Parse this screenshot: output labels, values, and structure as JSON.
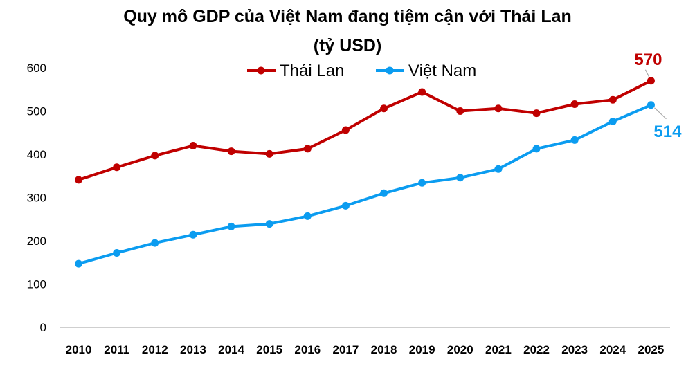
{
  "chart_data": {
    "type": "line",
    "title_line1": "Quy mô GDP của Việt Nam đang tiệm cận với Thái Lan",
    "title_line2": "(tỷ USD)",
    "xlabel": "",
    "ylabel": "",
    "ylim": [
      0,
      600
    ],
    "yticks": [
      "0",
      "100",
      "200",
      "300",
      "400",
      "500",
      "600"
    ],
    "categories": [
      "2010",
      "2011",
      "2012",
      "2013",
      "2014",
      "2015",
      "2016",
      "2017",
      "2018",
      "2019",
      "2020",
      "2021",
      "2022",
      "2023",
      "2024",
      "2025"
    ],
    "legend_position": "top-center",
    "grid": false,
    "series": [
      {
        "name": "Thái Lan",
        "color": "#C00000",
        "values": [
          341,
          370,
          397,
          420,
          407,
          401,
          413,
          456,
          506,
          544,
          500,
          506,
          495,
          516,
          526,
          570
        ],
        "end_label": "570"
      },
      {
        "name": "Việt Nam",
        "color": "#0B9CF0",
        "values": [
          147,
          172,
          195,
          214,
          233,
          239,
          257,
          281,
          310,
          334,
          346,
          366,
          413,
          433,
          476,
          514
        ],
        "end_label": "514"
      }
    ]
  }
}
